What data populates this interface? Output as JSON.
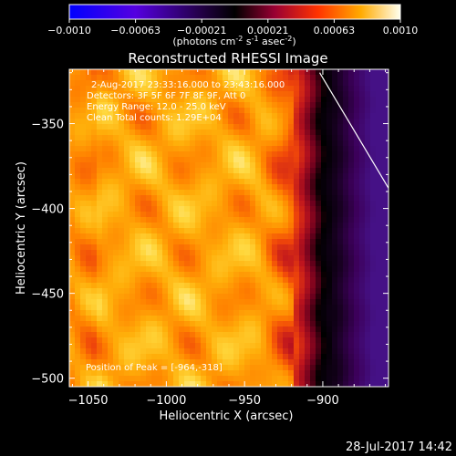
{
  "chart_data": {
    "type": "heatmap",
    "title": "Reconstructed RHESSI Image",
    "colorbar": {
      "ticks": [
        "−0.0010",
        "−0.00063",
        "−0.00021",
        "0.00021",
        "0.00063",
        "0.0010"
      ],
      "range": [
        -0.001,
        0.001
      ],
      "units_main": "(photons cm",
      "units_sup1": "-2",
      "units_mid": " s",
      "units_sup2": "-1",
      "units_end": " asec",
      "units_sup3": "-2",
      "units_close": ")"
    },
    "xlabel": "Heliocentric X (arcsec)",
    "ylabel": "Heliocentric Y (arcsec)",
    "x_ticks": [
      "−1050",
      "−1000",
      "−950",
      "−900"
    ],
    "x_tick_values": [
      -1050,
      -1000,
      -950,
      -900
    ],
    "y_ticks": [
      "−350",
      "−400",
      "−450",
      "−500"
    ],
    "y_tick_values": [
      -350,
      -400,
      -450,
      -500
    ],
    "xlim": [
      -1062,
      -858
    ],
    "ylim": [
      -505,
      -318
    ],
    "annotations": {
      "time": "2-Aug-2017 23:33:16.000 to 23:43:16.000",
      "detectors": "Detectors: 3F 5F 6F 7F 8F 9F, Att 0",
      "energy": "Energy Range: 12.0 - 25.0 keV",
      "clean": "Clean     Total counts: 1.29E+04",
      "peak": "Position of Peak = [-964,-318]"
    },
    "limb_line": [
      [
        -902,
        -320
      ],
      [
        -858,
        -388
      ]
    ]
  },
  "footer": "28-Jul-2017 14:42"
}
